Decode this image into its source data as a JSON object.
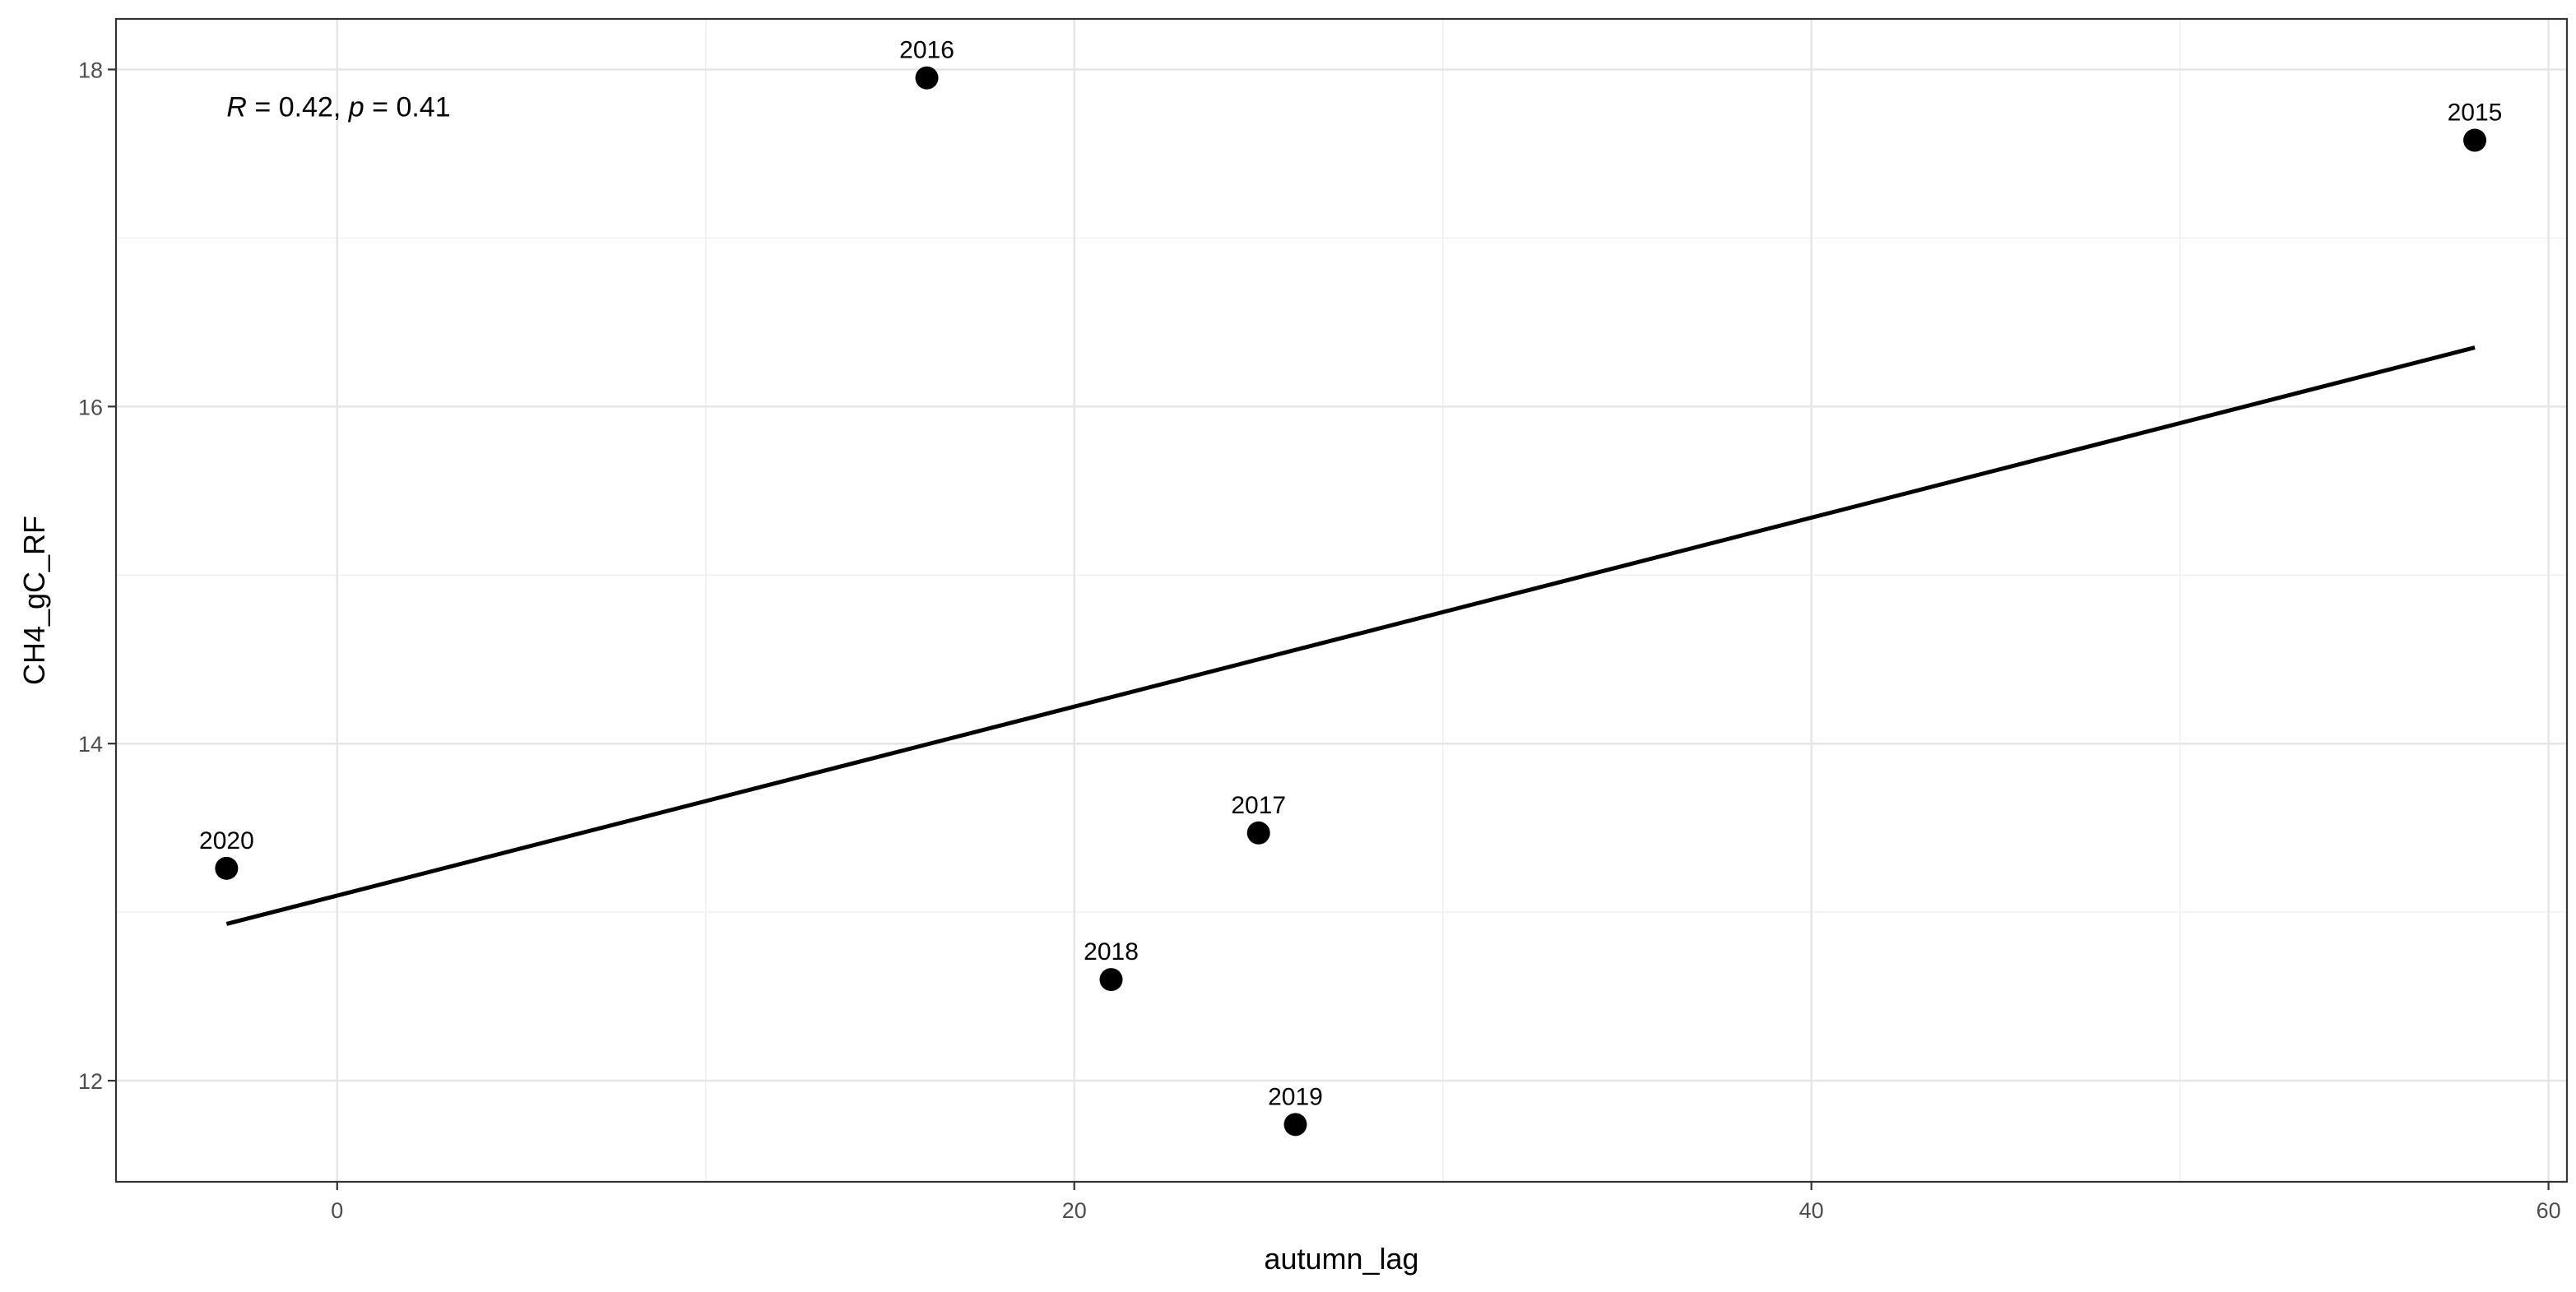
{
  "chart_data": {
    "type": "scatter",
    "title": "",
    "xlabel": "autumn_lag",
    "ylabel": "CH4_gC_RF",
    "xlim": [
      -6,
      60.5
    ],
    "ylim": [
      11.4,
      18.3
    ],
    "x_ticks": [
      0,
      20,
      40,
      60
    ],
    "y_ticks": [
      12,
      14,
      16,
      18
    ],
    "x_tick_labels": [
      "0",
      "20",
      "40",
      "60"
    ],
    "y_tick_labels": [
      "12",
      "14",
      "16",
      "18"
    ],
    "grid": true,
    "legend": "none",
    "points": [
      {
        "label": "2015",
        "x": 58,
        "y": 17.58
      },
      {
        "label": "2016",
        "x": 16,
        "y": 17.95
      },
      {
        "label": "2017",
        "x": 25,
        "y": 13.47
      },
      {
        "label": "2018",
        "x": 21,
        "y": 12.6
      },
      {
        "label": "2019",
        "x": 26,
        "y": 11.74
      },
      {
        "label": "2020",
        "x": -3,
        "y": 13.26
      }
    ],
    "fit_line": {
      "x": [
        -3,
        58
      ],
      "y": [
        12.93,
        16.35
      ]
    },
    "annotation": {
      "r_symbol": "R",
      "r_text": " = 0.42, ",
      "p_symbol": "p",
      "p_text": " = 0.41",
      "x": -3,
      "y": 17.78
    }
  }
}
